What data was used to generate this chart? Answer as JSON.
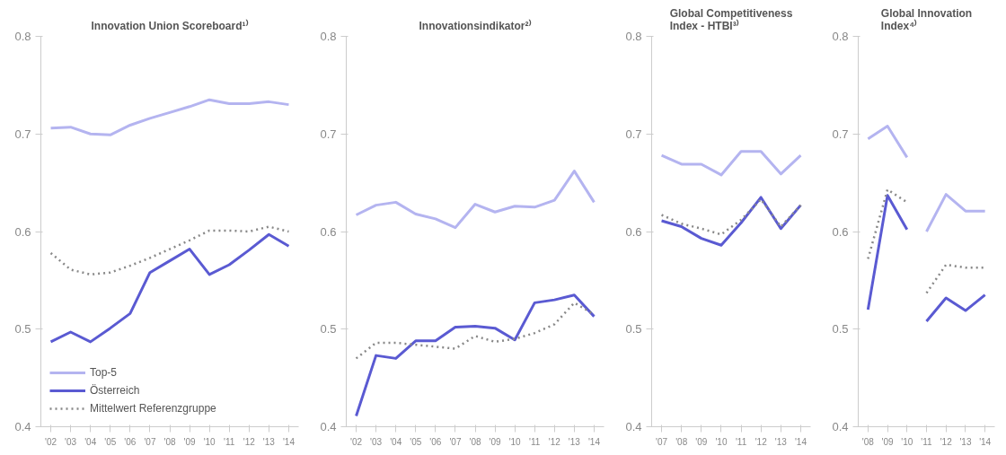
{
  "chart_data": [
    {
      "type": "line",
      "title": "Innovation Union Scoreboard¹⁾",
      "categories": [
        "'02",
        "'03",
        "'04",
        "'05",
        "'06",
        "'07",
        "'08",
        "'09",
        "'10",
        "'11",
        "'12",
        "'13",
        "'14"
      ],
      "ylim": [
        0.4,
        0.8
      ],
      "yticks": [
        0.4,
        0.5,
        0.6,
        0.7,
        0.8
      ],
      "grid": false,
      "legend": "bottom left",
      "series": [
        {
          "name": "Top-5",
          "color": "#b4b4f0",
          "line_style": "solid",
          "values": [
            0.706,
            0.707,
            0.7,
            0.699,
            0.709,
            0.716,
            0.722,
            0.728,
            0.735,
            0.731,
            0.731,
            0.733,
            0.73
          ]
        },
        {
          "name": "Österreich",
          "color": "#5a5ad2",
          "line_style": "solid",
          "values": [
            0.487,
            0.497,
            0.487,
            0.501,
            0.516,
            0.558,
            0.57,
            0.582,
            0.556,
            0.566,
            0.581,
            0.597,
            0.585
          ]
        },
        {
          "name": "Mittelwert Referenzgruppe",
          "color": "#888888",
          "line_style": "dotted",
          "values": [
            0.578,
            0.561,
            0.556,
            0.558,
            0.565,
            0.573,
            0.582,
            0.591,
            0.601,
            0.601,
            0.6,
            0.605,
            0.6
          ]
        }
      ]
    },
    {
      "type": "line",
      "title": "Innovationsindikator²⁾",
      "categories": [
        "'02",
        "'03",
        "'04",
        "'05",
        "'06",
        "'07",
        "'08",
        "'09",
        "'10",
        "'11",
        "'12",
        "'13",
        "'14"
      ],
      "ylim": [
        0.4,
        0.8
      ],
      "yticks": [
        0.4,
        0.5,
        0.6,
        0.7,
        0.8
      ],
      "grid": false,
      "series": [
        {
          "color": "#b4b4f0",
          "line_style": "solid",
          "values": [
            0.617,
            0.627,
            0.63,
            0.618,
            0.613,
            0.604,
            0.628,
            0.62,
            0.626,
            0.625,
            0.632,
            0.662,
            0.63
          ]
        },
        {
          "color": "#5a5ad2",
          "line_style": "solid",
          "values": [
            0.411,
            0.473,
            0.47,
            0.488,
            0.488,
            0.502,
            0.503,
            0.501,
            0.489,
            0.527,
            0.53,
            0.535,
            0.513
          ]
        },
        {
          "color": "#888888",
          "line_style": "dotted",
          "values": [
            0.47,
            0.486,
            0.486,
            0.484,
            0.482,
            0.48,
            0.493,
            0.487,
            0.49,
            0.496,
            0.505,
            0.527,
            0.515
          ]
        }
      ]
    },
    {
      "type": "line",
      "title": "Global Competitiveness\nIndex - HTBI³⁾",
      "categories": [
        "'07",
        "'08",
        "'09",
        "'10",
        "'11",
        "'12",
        "'13",
        "'14"
      ],
      "ylim": [
        0.4,
        0.8
      ],
      "yticks": [
        0.4,
        0.5,
        0.6,
        0.7,
        0.8
      ],
      "grid": false,
      "series": [
        {
          "color": "#b4b4f0",
          "line_style": "solid",
          "values": [
            0.678,
            0.669,
            0.669,
            0.658,
            0.682,
            0.682,
            0.659,
            0.678
          ]
        },
        {
          "color": "#5a5ad2",
          "line_style": "solid",
          "values": [
            0.611,
            0.605,
            0.593,
            0.586,
            0.609,
            0.635,
            0.603,
            0.627
          ]
        },
        {
          "color": "#888888",
          "line_style": "dotted",
          "values": [
            0.617,
            0.608,
            0.603,
            0.597,
            0.612,
            0.633,
            0.605,
            0.627
          ]
        }
      ]
    },
    {
      "type": "line",
      "title": "Global Innovation\nIndex⁴⁾",
      "categories": [
        "'08",
        "'09",
        "'10",
        "'11",
        "'12",
        "'13",
        "'14"
      ],
      "ylim": [
        0.4,
        0.8
      ],
      "yticks": [
        0.4,
        0.5,
        0.6,
        0.7,
        0.8
      ],
      "grid": false,
      "series": [
        {
          "color": "#b4b4f0",
          "line_style": "solid",
          "values": [
            0.695,
            0.708,
            0.676,
            null,
            null,
            null,
            null
          ]
        },
        {
          "color": "#5a5ad2",
          "line_style": "solid",
          "values": [
            0.52,
            0.637,
            0.602,
            null,
            null,
            null,
            null
          ]
        },
        {
          "color": "#888888",
          "line_style": "dotted",
          "values": [
            0.572,
            0.643,
            0.63,
            null,
            null,
            null,
            null
          ]
        },
        {
          "color": "#b4b4f0",
          "line_style": "solid",
          "values": [
            null,
            null,
            null,
            0.6,
            0.638,
            0.621,
            0.621
          ]
        },
        {
          "color": "#5a5ad2",
          "line_style": "solid",
          "values": [
            null,
            null,
            null,
            0.508,
            0.532,
            0.519,
            0.535
          ]
        },
        {
          "color": "#888888",
          "line_style": "dotted",
          "values": [
            null,
            null,
            null,
            0.537,
            0.566,
            0.563,
            0.563
          ]
        }
      ]
    }
  ]
}
